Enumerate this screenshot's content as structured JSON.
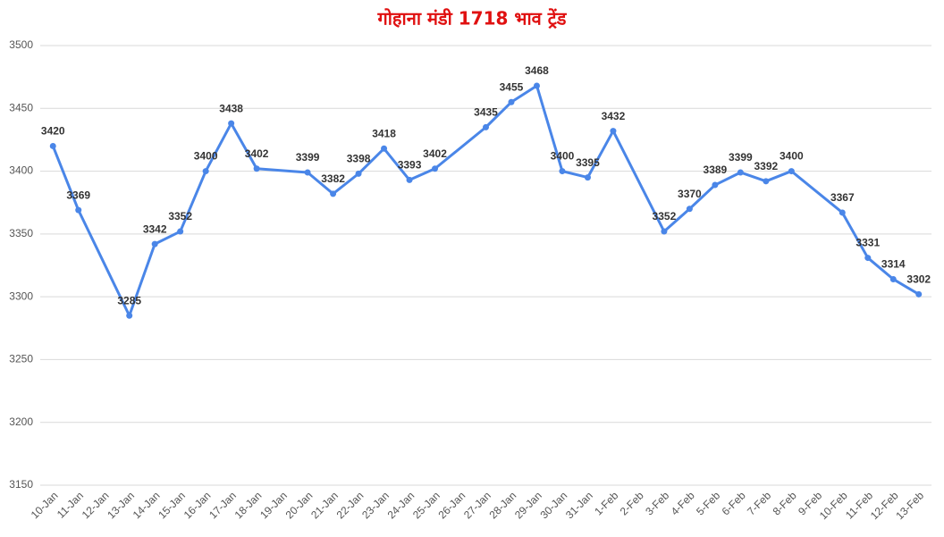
{
  "chart_data": {
    "type": "line",
    "title": "गोहाना मंडी 1718 भाव ट्रेंड",
    "categories": [
      "10-Jan",
      "11-Jan",
      "12-Jan",
      "13-Jan",
      "14-Jan",
      "15-Jan",
      "16-Jan",
      "17-Jan",
      "18-Jan",
      "19-Jan",
      "20-Jan",
      "21-Jan",
      "22-Jan",
      "23-Jan",
      "24-Jan",
      "25-Jan",
      "26-Jan",
      "27-Jan",
      "28-Jan",
      "29-Jan",
      "30-Jan",
      "31-Jan",
      "1-Feb",
      "2-Feb",
      "3-Feb",
      "4-Feb",
      "5-Feb",
      "6-Feb",
      "7-Feb",
      "8-Feb",
      "9-Feb",
      "10-Feb",
      "11-Feb",
      "12-Feb",
      "13-Feb"
    ],
    "values": [
      3420,
      3369,
      null,
      3285,
      3342,
      3352,
      3400,
      3438,
      3402,
      null,
      3399,
      3382,
      3398,
      3418,
      3393,
      3402,
      null,
      3435,
      3455,
      3468,
      3400,
      3395,
      3432,
      null,
      3352,
      3370,
      3389,
      3399,
      3392,
      3400,
      null,
      3367,
      3331,
      3314,
      3302
    ],
    "color": "#4a86e8",
    "connect_gaps": true,
    "ylim": [
      3150,
      3500
    ],
    "yticks": [
      3150,
      3200,
      3250,
      3300,
      3350,
      3400,
      3450,
      3500
    ],
    "grid": true
  }
}
